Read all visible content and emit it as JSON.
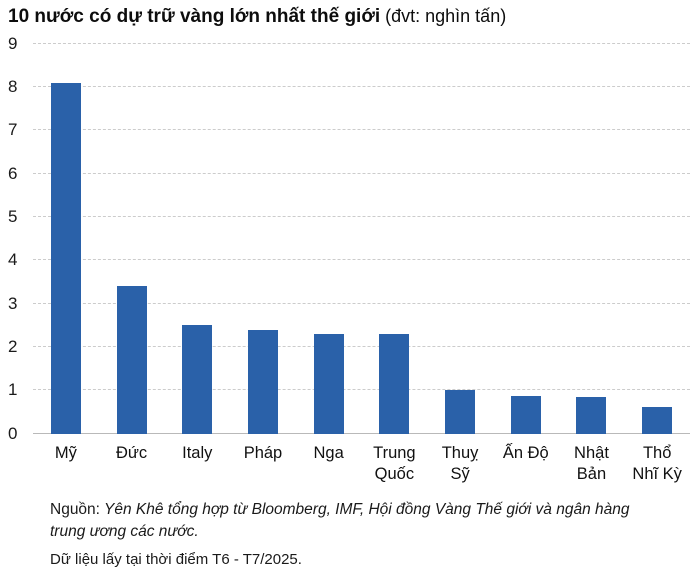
{
  "title": {
    "main": "10 nước có dự trữ vàng lớn nhất thế giới",
    "unit": " (đvt: nghìn tấn)"
  },
  "chart_data": {
    "type": "bar",
    "title": "10 nước có dự trữ vàng lớn nhất thế giới",
    "unit_note": "(đvt: nghìn tấn)",
    "categories": [
      "Mỹ",
      "Đức",
      "Italy",
      "Pháp",
      "Nga",
      "Trung Quốc",
      "Thuỵ Sỹ",
      "Ấn Độ",
      "Nhật Bản",
      "Thổ Nhĩ Kỳ"
    ],
    "tick_labels": [
      "Mỹ",
      "Đức",
      "Italy",
      "Pháp",
      "Nga",
      "Trung\nQuốc",
      "Thuỵ\nSỹ",
      "Ấn Độ",
      "Nhật\nBản",
      "Thổ\nNhĩ Kỳ"
    ],
    "values": [
      8.1,
      3.4,
      2.5,
      2.4,
      2.3,
      2.3,
      1.0,
      0.88,
      0.85,
      0.62
    ],
    "xlabel": "",
    "ylabel": "",
    "ylim": [
      0,
      9
    ],
    "yticks": [
      0,
      1,
      2,
      3,
      4,
      5,
      6,
      7,
      8,
      9
    ],
    "grid": "horizontal-dashed",
    "legend": "none",
    "bar_color": "#2a61a9",
    "gridline_color": "#cccccc",
    "baseline_color": "#b9b9b9"
  },
  "footer": {
    "source_prefix": "Nguồn:",
    "source_text": " Yên Khê tổng hợp từ Bloomberg, IMF, Hội đồng Vàng Thế giới và ngân hàng trung ương các nước.",
    "data_note": "Dữ liệu lấy tại thời điểm T6 - T7/2025."
  }
}
